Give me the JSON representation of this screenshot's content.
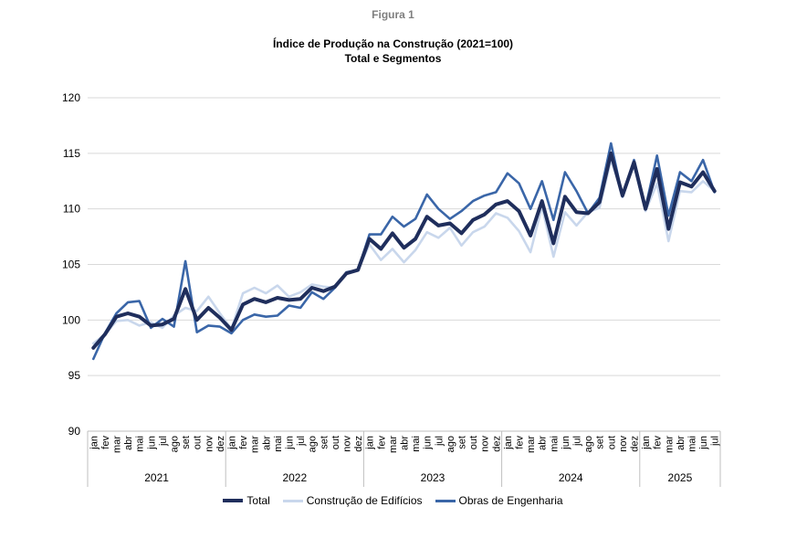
{
  "figure_label": "Figura 1",
  "chart_data": {
    "type": "line",
    "title": "Índice de Produção na Construção (2021=100)",
    "subtitle": "Total e Segmentos",
    "ylim": [
      90,
      120
    ],
    "yticks": [
      "90",
      "95",
      "100",
      "105",
      "110",
      "115",
      "120"
    ],
    "grid": true,
    "legend_position": "bottom",
    "months": [
      "jan",
      "fev",
      "mar",
      "abr",
      "mai",
      "jun",
      "jul",
      "ago",
      "set",
      "out",
      "nov",
      "dez"
    ],
    "years": [
      {
        "label": "2021",
        "months": 12
      },
      {
        "label": "2022",
        "months": 12
      },
      {
        "label": "2023",
        "months": 12
      },
      {
        "label": "2024",
        "months": 12
      },
      {
        "label": "2025",
        "months": 7
      }
    ],
    "series": [
      {
        "name": "Construção de Edifícios",
        "color": "#c9d7ec",
        "values": [
          97.9,
          98.7,
          99.9,
          100.0,
          99.5,
          99.8,
          99.3,
          100.4,
          101.1,
          100.8,
          102.1,
          100.6,
          99.2,
          102.4,
          102.9,
          102.4,
          103.1,
          102.1,
          102.5,
          103.2,
          103.0,
          102.9,
          104.2,
          104.5,
          106.8,
          105.4,
          106.4,
          105.2,
          106.3,
          107.9,
          107.4,
          108.3,
          106.7,
          107.9,
          108.4,
          109.6,
          109.2,
          108.0,
          106.1,
          110.2,
          105.7,
          109.7,
          108.5,
          109.7,
          110.1,
          114.4,
          111.3,
          113.9,
          109.8,
          112.3,
          107.1,
          111.6,
          111.5,
          112.5,
          111.6
        ]
      },
      {
        "name": "Obras de Engenharia",
        "color": "#3a66a8",
        "values": [
          96.5,
          98.8,
          100.6,
          101.6,
          101.7,
          99.3,
          100.1,
          99.4,
          105.3,
          98.9,
          99.5,
          99.4,
          98.8,
          100.0,
          100.5,
          100.3,
          100.4,
          101.3,
          101.1,
          102.5,
          101.9,
          102.9,
          104.3,
          104.5,
          107.7,
          107.7,
          109.3,
          108.4,
          109.1,
          111.3,
          110.0,
          109.1,
          109.8,
          110.7,
          111.2,
          111.5,
          113.2,
          112.3,
          110.0,
          112.5,
          109.0,
          113.3,
          111.6,
          109.6,
          111.0,
          115.9,
          111.1,
          114.4,
          110.1,
          114.8,
          109.4,
          113.3,
          112.5,
          114.4,
          111.5
        ]
      },
      {
        "name": "Total",
        "color": "#1f2e5c",
        "values": [
          97.5,
          98.7,
          100.3,
          100.6,
          100.3,
          99.5,
          99.6,
          100.1,
          102.8,
          100.0,
          101.1,
          100.2,
          99.1,
          101.4,
          101.9,
          101.6,
          102.0,
          101.8,
          101.9,
          102.9,
          102.6,
          103.0,
          104.2,
          104.5,
          107.3,
          106.4,
          107.8,
          106.5,
          107.3,
          109.3,
          108.5,
          108.7,
          107.8,
          109.0,
          109.5,
          110.4,
          110.7,
          109.8,
          107.6,
          110.7,
          106.9,
          111.1,
          109.7,
          109.6,
          110.6,
          115.0,
          111.2,
          114.2,
          110.0,
          113.6,
          108.2,
          112.4,
          112.0,
          113.3,
          111.6
        ]
      }
    ],
    "legend": [
      "Total",
      "Construção de Edifícios",
      "Obras de Engenharia"
    ]
  }
}
